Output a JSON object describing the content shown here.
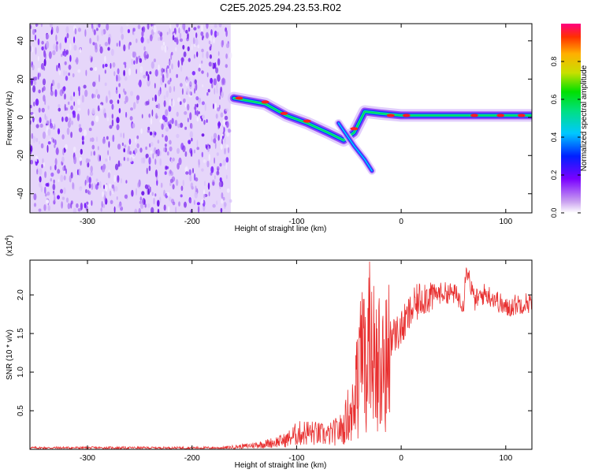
{
  "title": "C2E5.2025.294.23.53.R02",
  "chart_data": [
    {
      "type": "heatmap",
      "name": "spectrogram",
      "xlabel": "Height of straight line (km)",
      "ylabel": "Frequency (Hz)",
      "xlim": [
        -355,
        125
      ],
      "ylim": [
        -50,
        49
      ],
      "xticks": [
        -300,
        -200,
        -100,
        0,
        100
      ],
      "yticks": [
        -40,
        -20,
        0,
        20,
        40
      ],
      "colorbar": {
        "label": "Normalized spectral amplitude",
        "range": [
          0,
          1
        ],
        "ticks": [
          0.0,
          0.2,
          0.4,
          0.6,
          0.8
        ]
      },
      "features": [
        {
          "name": "noise-region",
          "x_range": [
            -355,
            -163
          ],
          "y_range": [
            -50,
            49
          ]
        },
        {
          "name": "main-trace",
          "points": [
            [
              -160,
              10
            ],
            [
              -130,
              7
            ],
            [
              -110,
              1
            ],
            [
              -90,
              -3
            ],
            [
              -70,
              -8
            ],
            [
              -55,
              -12
            ],
            [
              -45,
              -8
            ],
            [
              -35,
              3
            ],
            [
              -20,
              2
            ],
            [
              0,
              1
            ],
            [
              50,
              1
            ],
            [
              125,
              1
            ]
          ]
        },
        {
          "name": "secondary-branch",
          "points": [
            [
              -60,
              -3
            ],
            [
              -45,
              -15
            ],
            [
              -35,
              -22
            ],
            [
              -28,
              -28
            ]
          ]
        }
      ]
    },
    {
      "type": "line",
      "name": "snr",
      "xlabel": "Height of straight line (km)",
      "ylabel": "SNR (10 * v/v)",
      "yscale_label": "(x10",
      "yscale_exp": "4",
      "yscale_close": ")",
      "xlim": [
        -355,
        125
      ],
      "ylim": [
        0,
        2.45
      ],
      "xticks": [
        -300,
        -200,
        -100,
        0,
        100
      ],
      "yticks": [
        0.5,
        1.0,
        1.5,
        2.0
      ],
      "color": "#e83030",
      "envelope": {
        "x": [
          -355,
          -170,
          -150,
          -130,
          -110,
          -100,
          -90,
          -70,
          -55,
          -45,
          -40,
          -35,
          -30,
          -25,
          -20,
          -10,
          0,
          10,
          20,
          30,
          40,
          50,
          60,
          62,
          70,
          80,
          90,
          100,
          110,
          120,
          125
        ],
        "y": [
          0.02,
          0.02,
          0.04,
          0.07,
          0.12,
          0.2,
          0.22,
          0.18,
          0.28,
          0.7,
          1.1,
          1.35,
          1.4,
          1.3,
          1.3,
          1.45,
          1.55,
          1.8,
          1.98,
          2.0,
          2.03,
          2.02,
          1.9,
          2.4,
          1.92,
          2.02,
          1.95,
          1.82,
          1.88,
          1.9,
          1.9
        ]
      }
    }
  ]
}
